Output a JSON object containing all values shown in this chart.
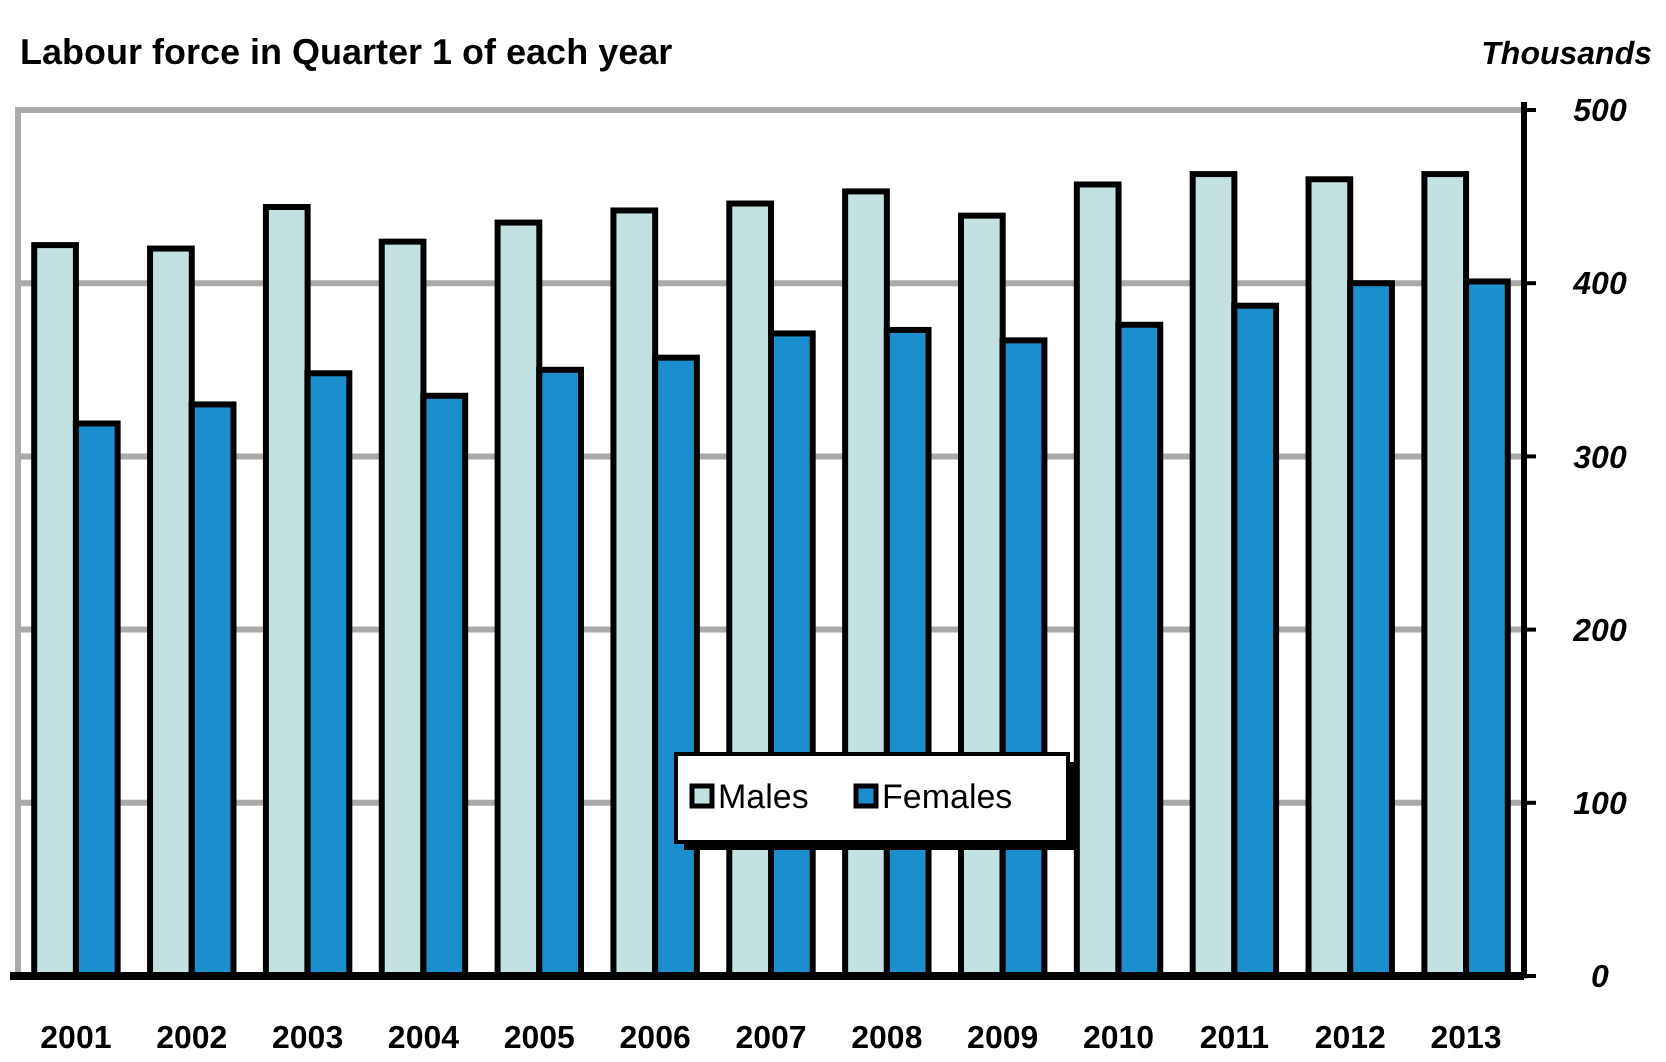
{
  "chart_data": {
    "type": "bar",
    "title": "Labour force in Quarter 1 of each year",
    "ylabel": "Thousands",
    "categories": [
      "2001",
      "2002",
      "2003",
      "2004",
      "2005",
      "2006",
      "2007",
      "2008",
      "2009",
      "2010",
      "2011",
      "2012",
      "2013"
    ],
    "series": [
      {
        "name": "Males",
        "color": "#c2e1e0",
        "values": [
          422,
          420,
          444,
          424,
          435,
          442,
          446,
          453,
          439,
          457,
          463,
          460,
          463
        ]
      },
      {
        "name": "Females",
        "color": "#1b8ecd",
        "values": [
          319,
          330,
          348,
          335,
          350,
          357,
          371,
          373,
          367,
          376,
          387,
          400,
          401
        ]
      }
    ],
    "ylim": [
      0,
      500
    ],
    "yticks": [
      0,
      100,
      200,
      300,
      400,
      500
    ],
    "grid": "y",
    "legend": "bottom"
  }
}
